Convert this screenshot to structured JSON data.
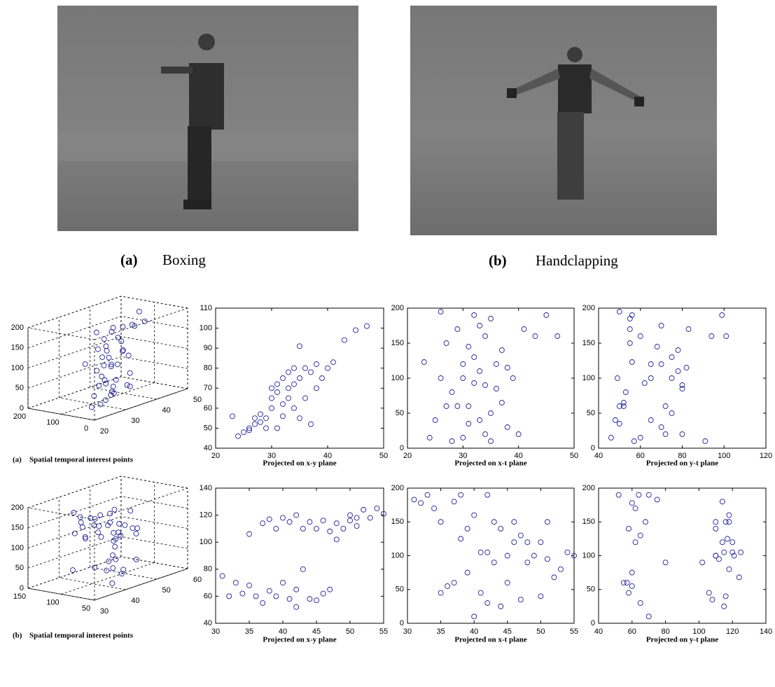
{
  "photos": [
    {
      "label": "(a)",
      "title": "Boxing"
    },
    {
      "label": "(b)",
      "title": "Handclapping"
    }
  ],
  "chart_data": [
    {
      "type": "scatter3d",
      "label": "(a)",
      "title": "Spatial temporal interest points",
      "x": [
        23,
        24,
        25,
        26,
        26,
        27,
        27,
        28,
        28,
        29,
        29,
        30,
        30,
        30,
        31,
        31,
        31,
        32,
        32,
        32,
        33,
        33,
        33,
        34,
        34,
        34,
        35,
        35,
        35,
        36,
        36,
        37,
        37,
        38,
        38,
        39,
        40,
        41,
        43,
        45,
        47
      ],
      "y": [
        56,
        46,
        48,
        50,
        49,
        52,
        55,
        53,
        57,
        50,
        55,
        60,
        65,
        70,
        50,
        68,
        72,
        56,
        62,
        75,
        65,
        70,
        78,
        60,
        72,
        80,
        55,
        75,
        91,
        65,
        80,
        52,
        78,
        70,
        82,
        75,
        80,
        83,
        94,
        99,
        101
      ],
      "z": [
        123,
        15,
        40,
        195,
        100,
        60,
        150,
        80,
        10,
        60,
        170,
        15,
        100,
        120,
        35,
        145,
        60,
        190,
        93,
        130,
        40,
        175,
        110,
        160,
        20,
        90,
        185,
        50,
        10,
        120,
        85,
        65,
        140,
        30,
        115,
        100,
        20,
        170,
        160,
        190,
        160
      ],
      "xlim": [
        20,
        50
      ],
      "ylim": [
        0,
        200
      ],
      "zlim": [
        0,
        200
      ],
      "xticks": [
        20,
        30,
        40,
        50
      ],
      "yticks": [
        0,
        100,
        200
      ],
      "zticks": [
        0,
        50,
        100,
        150,
        200
      ],
      "color": "#23239a",
      "grid": true
    },
    {
      "type": "scatter",
      "title": "Projected on x-y plane",
      "x": [
        23,
        24,
        25,
        26,
        26,
        27,
        27,
        28,
        28,
        29,
        29,
        30,
        30,
        30,
        31,
        31,
        31,
        32,
        32,
        32,
        33,
        33,
        33,
        34,
        34,
        34,
        35,
        35,
        35,
        36,
        36,
        37,
        37,
        38,
        38,
        39,
        40,
        41,
        43,
        45,
        47
      ],
      "y": [
        56,
        46,
        48,
        50,
        49,
        52,
        55,
        53,
        57,
        50,
        55,
        60,
        65,
        70,
        50,
        68,
        72,
        56,
        62,
        75,
        65,
        70,
        78,
        60,
        72,
        80,
        55,
        75,
        91,
        65,
        80,
        52,
        78,
        70,
        82,
        75,
        80,
        83,
        94,
        99,
        101
      ],
      "xlim": [
        20,
        50
      ],
      "ylim": [
        40,
        110
      ],
      "xticks": [
        20,
        30,
        40,
        50
      ],
      "yticks": [
        40,
        50,
        60,
        70,
        80,
        90,
        100,
        110
      ],
      "color": "#23239a"
    },
    {
      "type": "scatter",
      "title": "Projected on x-t plane",
      "x": [
        23,
        24,
        25,
        26,
        26,
        27,
        27,
        28,
        28,
        29,
        29,
        30,
        30,
        30,
        31,
        31,
        31,
        32,
        32,
        32,
        33,
        33,
        33,
        34,
        34,
        34,
        35,
        35,
        35,
        36,
        36,
        37,
        37,
        38,
        38,
        39,
        40,
        41,
        43,
        45,
        47
      ],
      "y": [
        123,
        15,
        40,
        195,
        100,
        60,
        150,
        80,
        10,
        60,
        170,
        15,
        100,
        120,
        35,
        145,
        60,
        190,
        93,
        130,
        40,
        175,
        110,
        160,
        20,
        90,
        185,
        50,
        10,
        120,
        85,
        65,
        140,
        30,
        115,
        100,
        20,
        170,
        160,
        190,
        160
      ],
      "xlim": [
        20,
        50
      ],
      "ylim": [
        0,
        200
      ],
      "xticks": [
        20,
        30,
        40,
        50
      ],
      "yticks": [
        0,
        50,
        100,
        150,
        200
      ],
      "color": "#23239a"
    },
    {
      "type": "scatter",
      "title": "Projected on y-t plane",
      "x": [
        56,
        46,
        48,
        50,
        49,
        52,
        55,
        53,
        57,
        50,
        55,
        60,
        65,
        70,
        50,
        68,
        72,
        56,
        62,
        75,
        65,
        70,
        78,
        60,
        72,
        80,
        55,
        75,
        91,
        65,
        80,
        52,
        78,
        70,
        82,
        75,
        80,
        83,
        94,
        99,
        101
      ],
      "y": [
        123,
        15,
        40,
        195,
        100,
        60,
        150,
        80,
        10,
        60,
        170,
        15,
        100,
        120,
        35,
        145,
        60,
        190,
        93,
        130,
        40,
        175,
        110,
        160,
        20,
        90,
        185,
        50,
        10,
        120,
        85,
        65,
        140,
        30,
        115,
        100,
        20,
        170,
        160,
        190,
        160
      ],
      "xlim": [
        40,
        120
      ],
      "ylim": [
        0,
        200
      ],
      "xticks": [
        40,
        60,
        80,
        100,
        120
      ],
      "yticks": [
        0,
        50,
        100,
        150,
        200
      ],
      "color": "#23239a"
    },
    {
      "type": "scatter3d",
      "label": "(b)",
      "title": "Spatial temporal interest points",
      "x": [
        31,
        32,
        33,
        34,
        35,
        35,
        36,
        37,
        37,
        38,
        38,
        39,
        39,
        40,
        40,
        41,
        41,
        42,
        42,
        42,
        43,
        43,
        44,
        44,
        45,
        45,
        46,
        46,
        47,
        47,
        48,
        48,
        49,
        50,
        50,
        51,
        51,
        52,
        53,
        54,
        55
      ],
      "y": [
        75,
        60,
        70,
        62,
        106,
        68,
        60,
        114,
        55,
        117,
        64,
        60,
        110,
        70,
        118,
        58,
        115,
        52,
        120,
        65,
        110,
        80,
        115,
        58,
        110,
        57,
        116,
        62,
        108,
        65,
        102,
        114,
        110,
        116,
        120,
        112,
        118,
        124,
        118,
        125,
        121
      ],
      "z": [
        183,
        178,
        190,
        170,
        45,
        150,
        55,
        180,
        60,
        125,
        190,
        75,
        140,
        10,
        160,
        45,
        105,
        190,
        105,
        30,
        150,
        90,
        25,
        140,
        100,
        60,
        150,
        120,
        35,
        130,
        90,
        120,
        100,
        40,
        120,
        95,
        150,
        68,
        80,
        105,
        100
      ],
      "xlim": [
        30,
        60
      ],
      "ylim": [
        50,
        150
      ],
      "zlim": [
        0,
        200
      ],
      "xticks": [
        30,
        40,
        50,
        60
      ],
      "yticks": [
        50,
        100,
        150
      ],
      "zticks": [
        0,
        50,
        100,
        150,
        200
      ],
      "color": "#23239a",
      "grid": true
    },
    {
      "type": "scatter",
      "title": "Projected on x-y plane",
      "x": [
        31,
        32,
        33,
        34,
        35,
        35,
        36,
        37,
        37,
        38,
        38,
        39,
        39,
        40,
        40,
        41,
        41,
        42,
        42,
        42,
        43,
        43,
        44,
        44,
        45,
        45,
        46,
        46,
        47,
        47,
        48,
        48,
        49,
        50,
        50,
        51,
        51,
        52,
        53,
        54,
        55
      ],
      "y": [
        75,
        60,
        70,
        62,
        106,
        68,
        60,
        114,
        55,
        117,
        64,
        60,
        110,
        70,
        118,
        58,
        115,
        52,
        120,
        65,
        110,
        80,
        115,
        58,
        110,
        57,
        116,
        62,
        108,
        65,
        102,
        114,
        110,
        116,
        120,
        112,
        118,
        124,
        118,
        125,
        121
      ],
      "xlim": [
        30,
        55
      ],
      "ylim": [
        40,
        140
      ],
      "xticks": [
        30,
        35,
        40,
        45,
        50,
        55
      ],
      "yticks": [
        40,
        60,
        80,
        100,
        120,
        140
      ],
      "color": "#23239a"
    },
    {
      "type": "scatter",
      "title": "Projected on x-t plane",
      "x": [
        31,
        32,
        33,
        34,
        35,
        35,
        36,
        37,
        37,
        38,
        38,
        39,
        39,
        40,
        40,
        41,
        41,
        42,
        42,
        42,
        43,
        43,
        44,
        44,
        45,
        45,
        46,
        46,
        47,
        47,
        48,
        48,
        49,
        50,
        50,
        51,
        51,
        52,
        53,
        54,
        55
      ],
      "y": [
        183,
        178,
        190,
        170,
        45,
        150,
        55,
        180,
        60,
        125,
        190,
        75,
        140,
        10,
        160,
        45,
        105,
        190,
        105,
        30,
        150,
        90,
        25,
        140,
        100,
        60,
        150,
        120,
        35,
        130,
        90,
        120,
        100,
        40,
        120,
        95,
        150,
        68,
        80,
        105,
        100
      ],
      "xlim": [
        30,
        55
      ],
      "ylim": [
        0,
        200
      ],
      "xticks": [
        30,
        35,
        40,
        45,
        50,
        55
      ],
      "yticks": [
        0,
        50,
        100,
        150,
        200
      ],
      "color": "#23239a"
    },
    {
      "type": "scatter",
      "title": "Projected on y-t plane",
      "x": [
        75,
        60,
        70,
        62,
        106,
        68,
        60,
        114,
        55,
        117,
        64,
        60,
        110,
        70,
        118,
        58,
        115,
        52,
        120,
        65,
        110,
        80,
        115,
        58,
        110,
        57,
        116,
        62,
        108,
        65,
        102,
        114,
        110,
        116,
        120,
        112,
        118,
        124,
        118,
        125,
        121
      ],
      "y": [
        183,
        178,
        190,
        170,
        45,
        150,
        55,
        180,
        60,
        125,
        190,
        75,
        140,
        10,
        160,
        45,
        105,
        190,
        105,
        30,
        150,
        90,
        25,
        140,
        100,
        60,
        150,
        120,
        35,
        130,
        90,
        120,
        100,
        40,
        120,
        95,
        150,
        68,
        80,
        105,
        100
      ],
      "xlim": [
        40,
        140
      ],
      "ylim": [
        0,
        200
      ],
      "xticks": [
        40,
        60,
        80,
        100,
        120,
        140
      ],
      "yticks": [
        0,
        50,
        100,
        150,
        200
      ],
      "color": "#23239a"
    }
  ]
}
